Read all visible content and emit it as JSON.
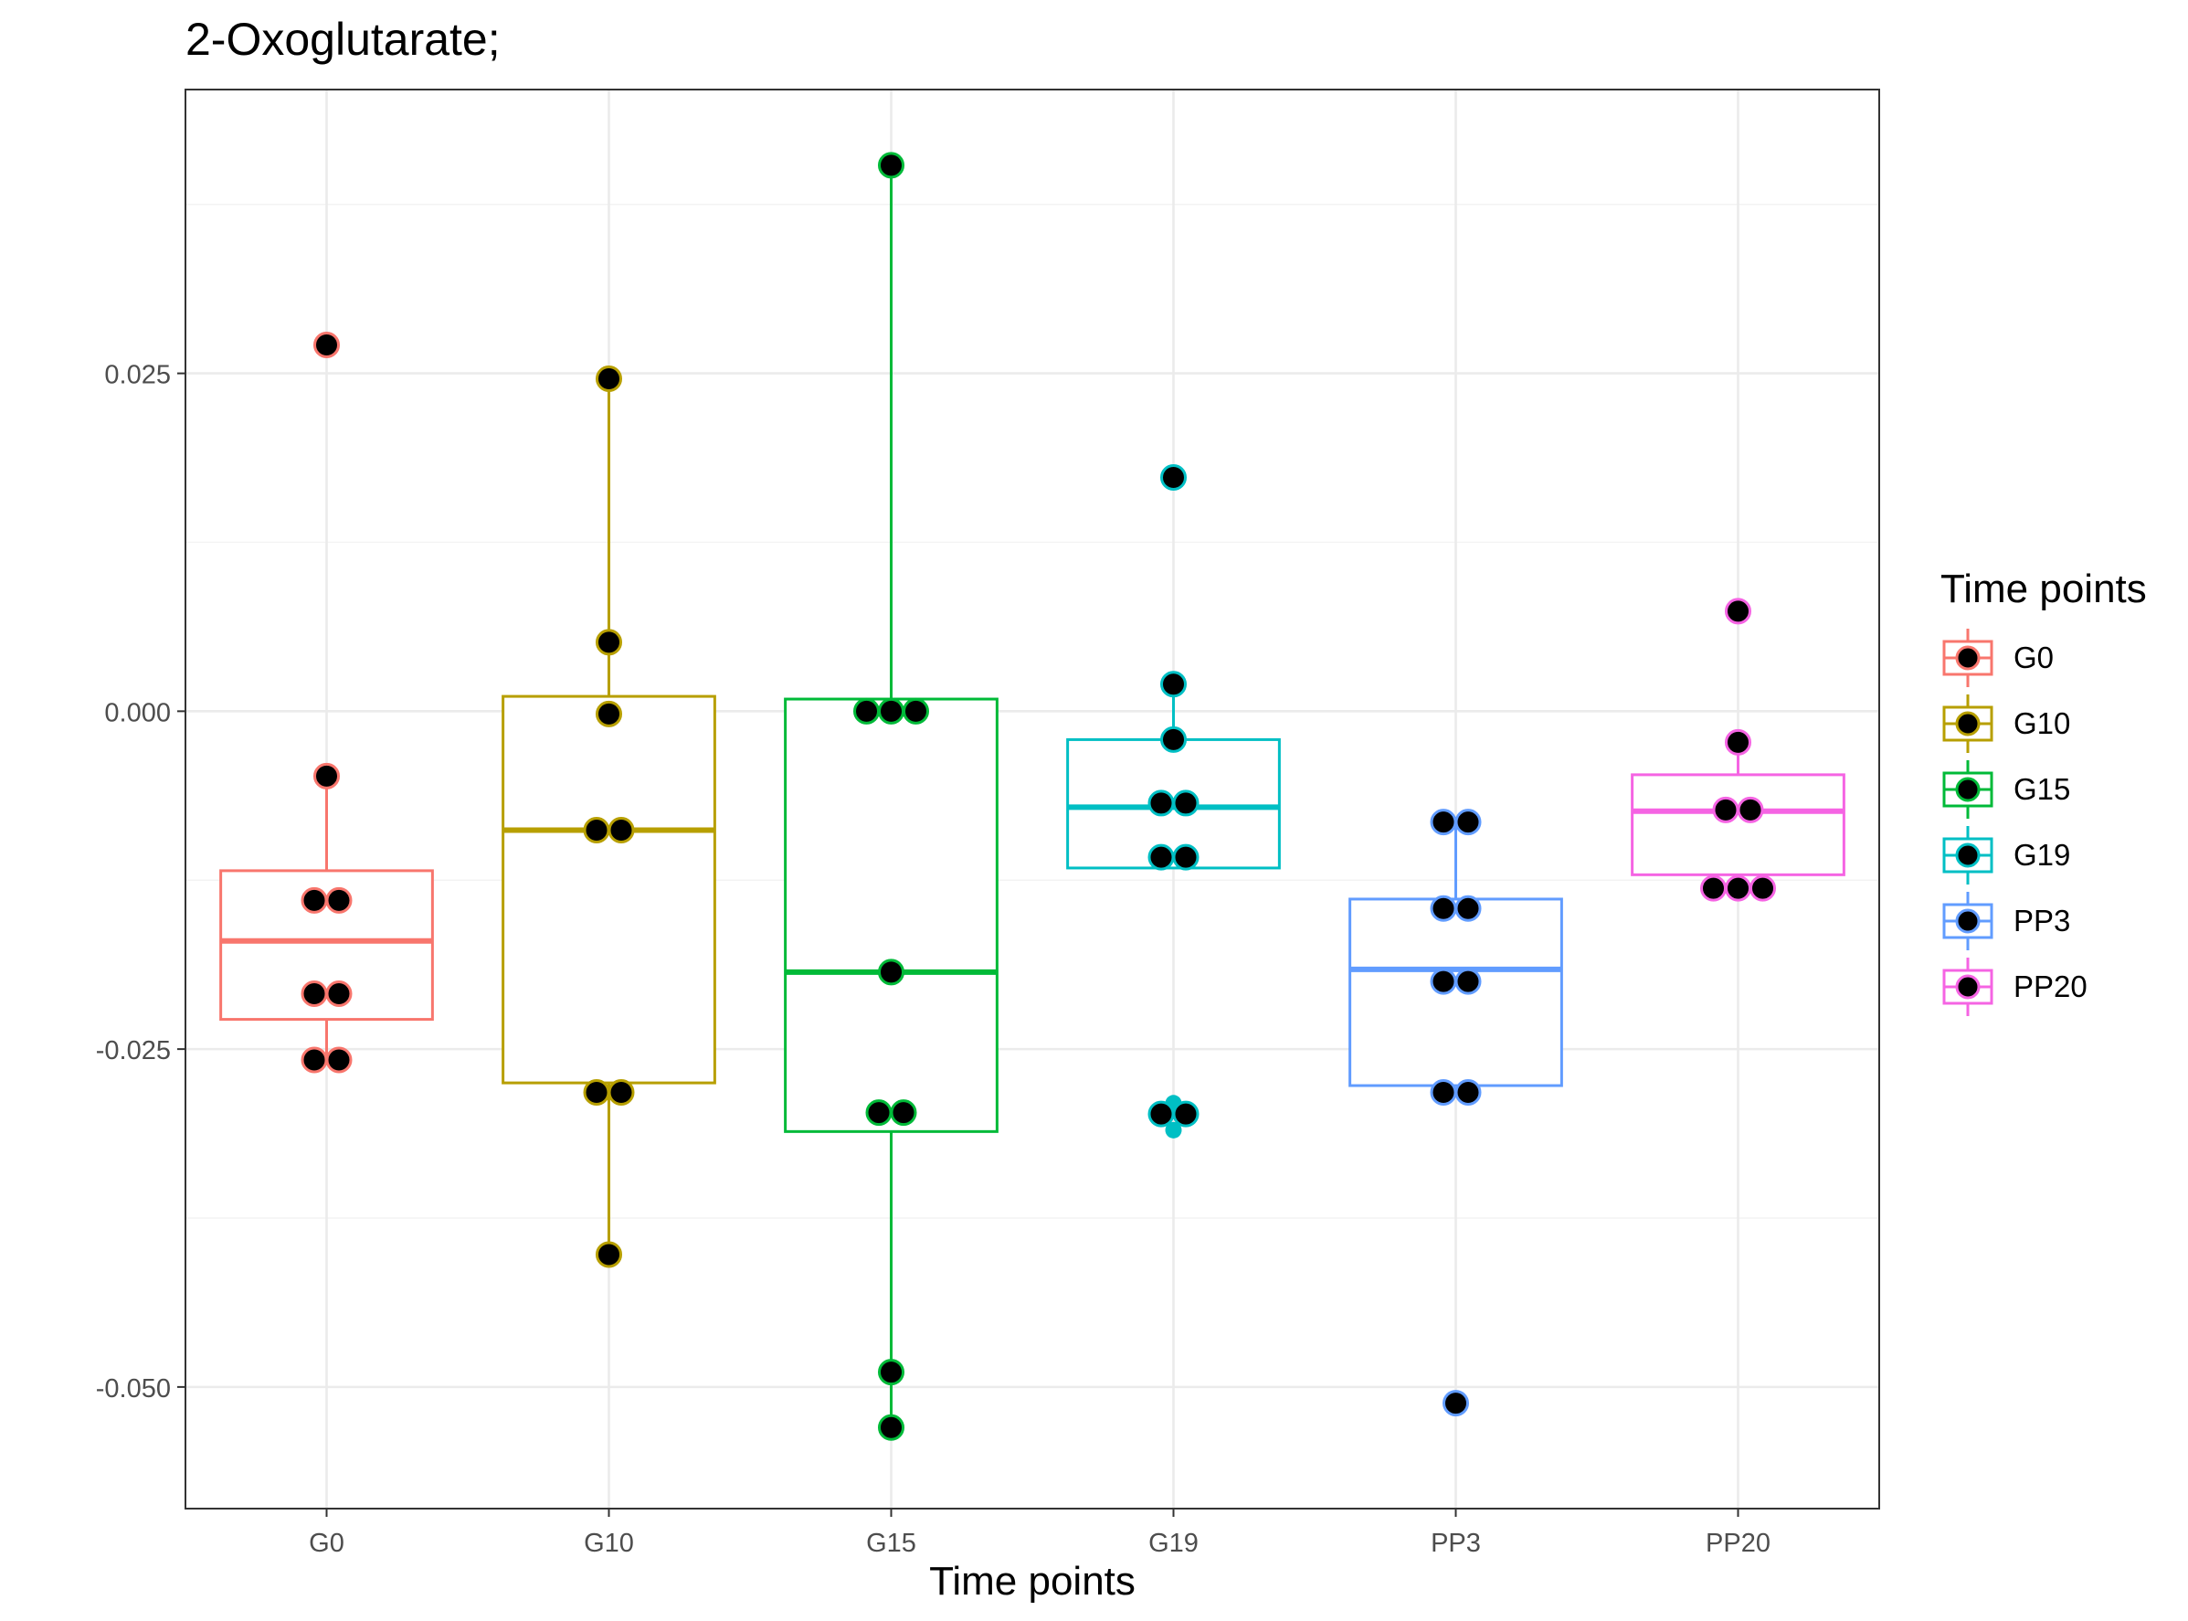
{
  "chart_data": {
    "type": "box",
    "title": "2-Oxoglutarate;",
    "xlabel": "Time points",
    "ylabel": "",
    "ylim": [
      -0.059,
      0.046
    ],
    "yticks": [
      {
        "value": 0.025,
        "label": "0.025"
      },
      {
        "value": 0.0,
        "label": "0.000"
      },
      {
        "value": -0.025,
        "label": "-0.025"
      },
      {
        "value": -0.05,
        "label": "-0.050"
      }
    ],
    "grid": true,
    "legend": {
      "title": "Time points",
      "position": "right"
    },
    "categories": [
      "G0",
      "G10",
      "G15",
      "G19",
      "PP3",
      "PP20"
    ],
    "groups": [
      {
        "name": "G0",
        "color": "#F8766D",
        "box": {
          "q1": -0.0228,
          "median": -0.017,
          "q3": -0.0118,
          "lower": -0.0258,
          "upper": -0.0048
        },
        "points": [
          0.0271,
          -0.0048,
          -0.014,
          -0.014,
          -0.0209,
          -0.0209,
          -0.0258,
          -0.0258
        ]
      },
      {
        "name": "G10",
        "color": "#B79F00",
        "box": {
          "q1": -0.0275,
          "median": -0.0088,
          "q3": 0.0011,
          "lower": -0.0402,
          "upper": 0.0246
        },
        "points": [
          0.0246,
          0.0051,
          -0.0002,
          -0.0088,
          -0.0088,
          -0.0282,
          -0.0282,
          -0.0402
        ]
      },
      {
        "name": "G15",
        "color": "#00BA38",
        "box": {
          "q1": -0.0311,
          "median": -0.0193,
          "q3": 0.0009,
          "lower": -0.053,
          "upper": 0.0404
        },
        "points": [
          0.0404,
          0.0,
          0.0,
          0.0,
          -0.0193,
          -0.0297,
          -0.0297,
          -0.0489,
          -0.053
        ]
      },
      {
        "name": "G19",
        "color": "#00BFC4",
        "box": {
          "q1": -0.0116,
          "median": -0.0071,
          "q3": -0.0021,
          "lower": -0.0116,
          "upper": 0.002
        },
        "outliers": [
          -0.029,
          -0.031
        ],
        "points": [
          0.0173,
          0.002,
          -0.0021,
          -0.0068,
          -0.0068,
          -0.0108,
          -0.0108,
          -0.0298,
          -0.0298
        ]
      },
      {
        "name": "PP3",
        "color": "#619CFF",
        "box": {
          "q1": -0.0277,
          "median": -0.0191,
          "q3": -0.0139,
          "lower": -0.0277,
          "upper": -0.0082
        },
        "points": [
          -0.0082,
          -0.0082,
          -0.0146,
          -0.0146,
          -0.02,
          -0.02,
          -0.0282,
          -0.0282,
          -0.0512
        ]
      },
      {
        "name": "PP20",
        "color": "#F564E3",
        "box": {
          "q1": -0.0121,
          "median": -0.0074,
          "q3": -0.0047,
          "lower": -0.0121,
          "upper": -0.0023
        },
        "points": [
          0.0074,
          -0.0023,
          -0.0073,
          -0.0073,
          -0.0131,
          -0.0131,
          -0.0131
        ]
      }
    ]
  }
}
